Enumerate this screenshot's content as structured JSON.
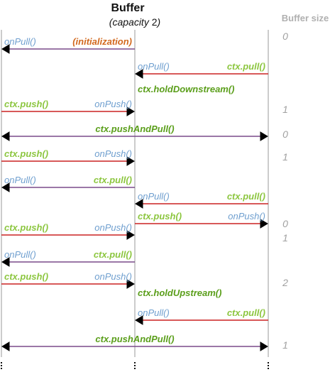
{
  "title": "Buffer",
  "subtitle_prefix": "(capacity ",
  "subtitle_number": "2",
  "subtitle_suffix": ")",
  "size_header": "Buffer size",
  "colors": {
    "callback": "#6f9fcf",
    "ctx_call": "#8cc63f",
    "ctx_hold": "#5a9e1a",
    "init": "#d2691e",
    "arrow_left": "#7a4a8a",
    "arrow_right": "#cc2222",
    "lifeline": "#999999",
    "size": "#a0a0a0"
  },
  "messages": [
    {
      "id": "m1",
      "dir": "left",
      "span": "left-mid",
      "labels": {
        "left": {
          "text": "onPull()",
          "kind": "callback"
        },
        "right": {
          "text": "(initialization)",
          "kind": "init"
        }
      }
    },
    {
      "id": "m2",
      "dir": "left",
      "span": "mid-right",
      "labels": {
        "left": {
          "text": "onPull()",
          "kind": "callback"
        },
        "right": {
          "text": "ctx.pull()",
          "kind": "ctx_call"
        }
      }
    },
    {
      "id": "m3",
      "dir": "none",
      "span": "mid-right",
      "labels": {
        "left": {
          "text": "ctx.holdDownstream()",
          "kind": "ctx_hold"
        }
      }
    },
    {
      "id": "m4",
      "dir": "right",
      "span": "left-mid",
      "labels": {
        "left": {
          "text": "ctx.push()",
          "kind": "ctx_call"
        },
        "right": {
          "text": "onPush()",
          "kind": "callback"
        }
      }
    },
    {
      "id": "m5",
      "dir": "both",
      "span": "left-right",
      "labels": {
        "center": {
          "text": "ctx.pushAndPull()",
          "kind": "ctx_hold"
        }
      }
    },
    {
      "id": "m6",
      "dir": "right",
      "span": "left-mid",
      "labels": {
        "left": {
          "text": "ctx.push()",
          "kind": "ctx_call"
        },
        "right": {
          "text": "onPush()",
          "kind": "callback"
        }
      }
    },
    {
      "id": "m7",
      "dir": "left",
      "span": "left-mid",
      "labels": {
        "left": {
          "text": "onPull()",
          "kind": "callback"
        },
        "right": {
          "text": "ctx.pull()",
          "kind": "ctx_call"
        }
      }
    },
    {
      "id": "m8",
      "dir": "left",
      "span": "mid-right",
      "labels": {
        "left": {
          "text": "onPull()",
          "kind": "callback"
        },
        "right": {
          "text": "ctx.pull()",
          "kind": "ctx_call"
        }
      }
    },
    {
      "id": "m9",
      "dir": "right",
      "span": "mid-right",
      "labels": {
        "left": {
          "text": "ctx.push()",
          "kind": "ctx_call"
        },
        "right": {
          "text": "onPush()",
          "kind": "callback"
        }
      }
    },
    {
      "id": "m10",
      "dir": "right",
      "span": "left-mid",
      "labels": {
        "left": {
          "text": "ctx.push()",
          "kind": "ctx_call"
        },
        "right": {
          "text": "onPush()",
          "kind": "callback"
        }
      }
    },
    {
      "id": "m11",
      "dir": "left",
      "span": "left-mid",
      "labels": {
        "left": {
          "text": "onPull()",
          "kind": "callback"
        },
        "right": {
          "text": "ctx.pull()",
          "kind": "ctx_call"
        }
      }
    },
    {
      "id": "m12",
      "dir": "right",
      "span": "left-mid",
      "labels": {
        "left": {
          "text": "ctx.push()",
          "kind": "ctx_call"
        },
        "right": {
          "text": "onPush()",
          "kind": "callback"
        }
      }
    },
    {
      "id": "m13",
      "dir": "none",
      "span": "mid-right",
      "labels": {
        "left": {
          "text": "ctx.holdUpstream()",
          "kind": "ctx_hold"
        }
      }
    },
    {
      "id": "m14",
      "dir": "left",
      "span": "mid-right",
      "labels": {
        "left": {
          "text": "onPull()",
          "kind": "callback"
        },
        "right": {
          "text": "ctx.pull()",
          "kind": "ctx_call"
        }
      }
    },
    {
      "id": "m15",
      "dir": "both",
      "span": "left-right",
      "labels": {
        "center": {
          "text": "ctx.pushAndPull()",
          "kind": "ctx_hold"
        }
      }
    }
  ],
  "sizes": [
    {
      "after": "m1",
      "value": "0"
    },
    {
      "after": "m4",
      "value": "1"
    },
    {
      "after": "m5",
      "value": "0"
    },
    {
      "after": "m6",
      "value": "1"
    },
    {
      "after": "m9",
      "value": "0"
    },
    {
      "after": "m10",
      "value": "1"
    },
    {
      "after": "m12",
      "value": "2"
    },
    {
      "after": "m15",
      "value": "1"
    }
  ]
}
